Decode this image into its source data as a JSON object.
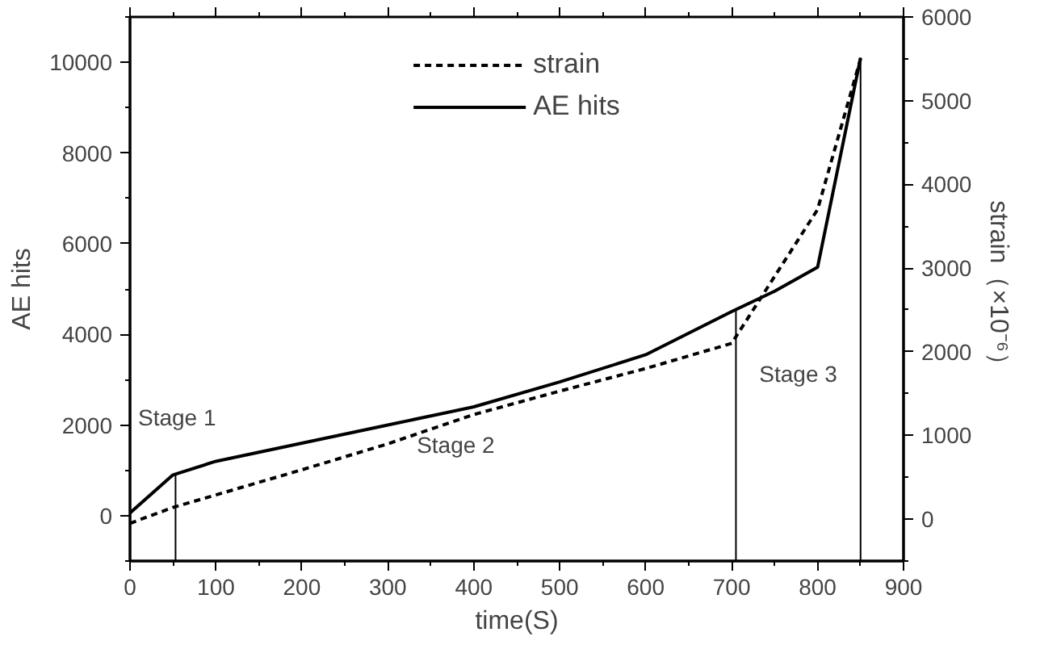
{
  "chart_data": {
    "type": "line",
    "xlabel": "time(S)",
    "ylabel": "AE hits",
    "y2label": "strain（×10⁻⁶）",
    "xlim": [
      0,
      900
    ],
    "xticks": [
      0,
      100,
      200,
      300,
      400,
      500,
      600,
      700,
      800,
      900
    ],
    "ylim": [
      -1000,
      11000
    ],
    "yticks": [
      0,
      2000,
      4000,
      6000,
      8000,
      10000
    ],
    "y2lim": [
      -500,
      6000
    ],
    "y2ticks": [
      0,
      1000,
      2000,
      3000,
      4000,
      5000,
      6000
    ],
    "series": [
      {
        "name": "strain",
        "color": "#000000",
        "axis": "y2",
        "line_style": "dashed",
        "x": [
          0,
          50,
          100,
          200,
          300,
          400,
          500,
          600,
          700,
          800,
          850
        ],
        "values": [
          -50,
          140,
          290,
          590,
          900,
          1250,
          1530,
          1800,
          2100,
          3700,
          5500
        ]
      },
      {
        "name": "AE hits",
        "color": "#000000",
        "axis": "y",
        "line_style": "solid",
        "x": [
          0,
          50,
          100,
          200,
          300,
          400,
          500,
          600,
          700,
          750,
          800,
          850
        ],
        "values": [
          60,
          900,
          1200,
          1600,
          2000,
          2400,
          2950,
          3550,
          4500,
          4950,
          5480,
          10100
        ]
      }
    ],
    "ref_lines": [
      {
        "axis": "x",
        "value": 53,
        "color": "#000000"
      },
      {
        "axis": "x",
        "value": 705,
        "color": "#000000"
      },
      {
        "axis": "x",
        "value": 850,
        "color": "#000000"
      }
    ],
    "annotations": [
      "Stage 1",
      "Stage 2",
      "Stage 3"
    ],
    "legend": "top",
    "grid": false,
    "marker": "none"
  }
}
